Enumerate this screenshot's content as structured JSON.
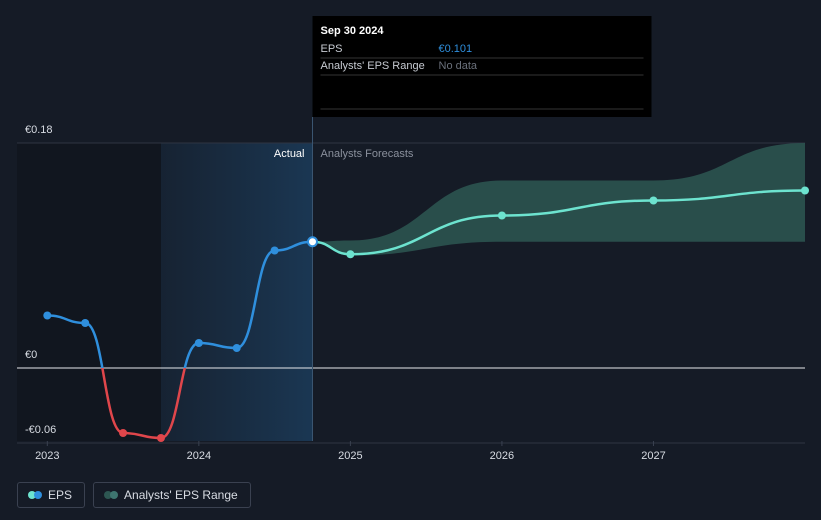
{
  "chart_data": {
    "type": "line",
    "xlim": [
      2022.8,
      2028
    ],
    "xticks": [
      2023,
      2024,
      2025,
      2026,
      2027
    ],
    "ylim": [
      -0.06,
      0.18
    ],
    "yticks": [
      {
        "value": 0.18,
        "label": "€0.18"
      },
      {
        "value": 0,
        "label": "€0"
      },
      {
        "value": -0.06,
        "label": "-€0.06"
      }
    ],
    "annotations": {
      "actual": "Actual",
      "forecast": "Analysts Forecasts"
    },
    "series": [
      {
        "name": "EPS",
        "color": "#2f8fdd",
        "negative_color": "#e0464b",
        "x": [
          2023,
          2023.25,
          2023.5,
          2023.75,
          2024,
          2024.25,
          2024.5,
          2024.75
        ],
        "values": [
          0.042,
          0.036,
          -0.052,
          -0.056,
          0.02,
          0.016,
          0.094,
          0.101
        ]
      }
    ],
    "forecast": {
      "color": "#6de3cf",
      "x": [
        2024.75,
        2025,
        2026,
        2027,
        2028
      ],
      "values": [
        0.101,
        0.091,
        0.122,
        0.134,
        0.142
      ]
    },
    "range": {
      "name": "Analysts' EPS Range",
      "color": "#2d5752",
      "x": [
        2024.75,
        2025,
        2026,
        2027,
        2028
      ],
      "low": [
        0.101,
        0.09,
        0.101,
        0.101,
        0.101
      ],
      "high": [
        0.101,
        0.102,
        0.15,
        0.15,
        0.18
      ]
    },
    "tooltip": {
      "date": "Sep 30 2024",
      "rows": [
        {
          "label": "EPS",
          "value": "€0.101"
        },
        {
          "label": "Analysts' EPS Range",
          "value": "No data"
        }
      ]
    }
  }
}
